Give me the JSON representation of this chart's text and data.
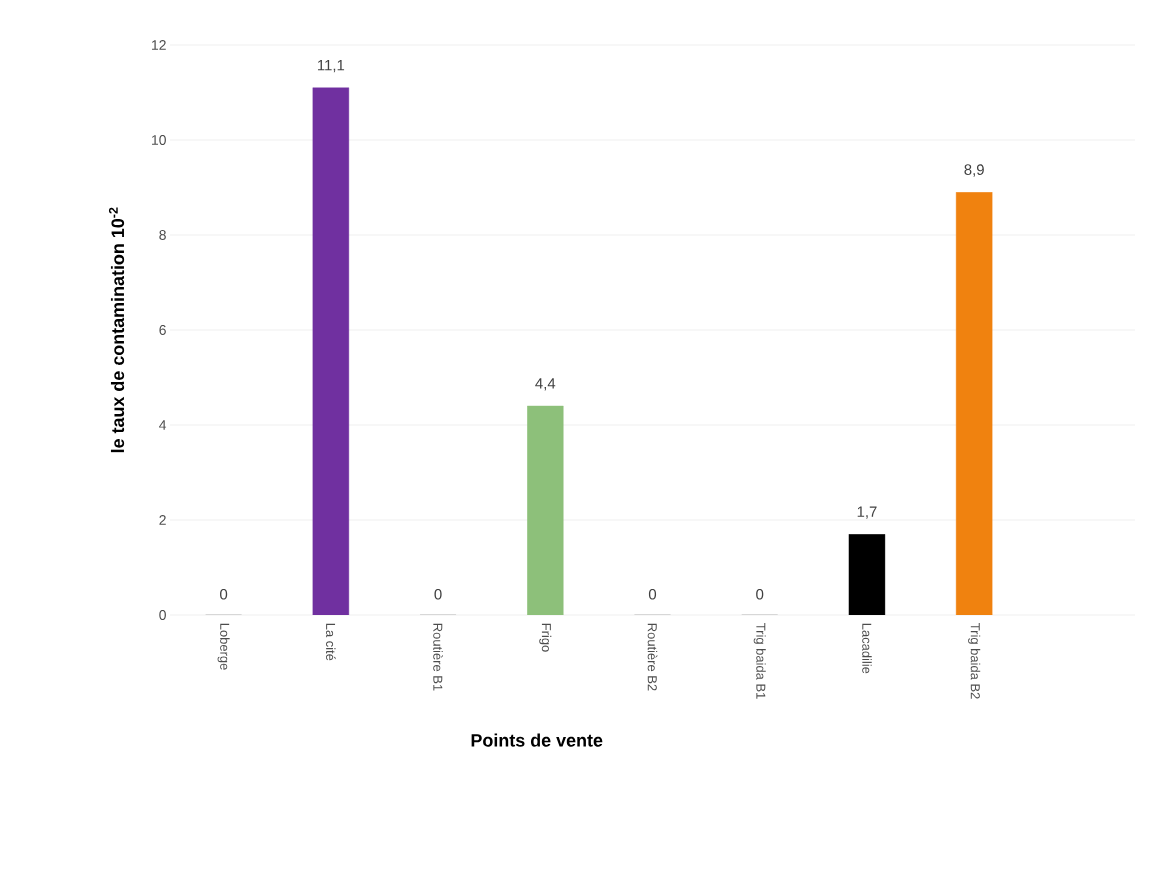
{
  "chart_data": {
    "type": "bar",
    "xlabel": "Points de vente",
    "ylabel": "le taux de contamination 10$^{-2}$",
    "categories": [
      "Loberge",
      "La cité",
      "Routière B1",
      "Frigo",
      "Routière B2",
      "Trig baida B1",
      "Lacadilie",
      "Trig baida B2"
    ],
    "values": [
      0,
      11.1,
      0,
      4.4,
      0,
      0,
      1.7,
      8.9
    ],
    "colors": [
      "#a5a5a5",
      "#7030a0",
      "#a5a5a5",
      "#8dc07a",
      "#a5a5a5",
      "#a5a5a5",
      "#000000",
      "#f0820f"
    ],
    "value_labels": [
      "0",
      "11,1",
      "0",
      "4,4",
      "0",
      "0",
      "1,7",
      "8,9"
    ],
    "ylim": [
      0,
      12
    ],
    "yticks": [
      0,
      2,
      4,
      6,
      8,
      10,
      12
    ],
    "grid": "y"
  }
}
